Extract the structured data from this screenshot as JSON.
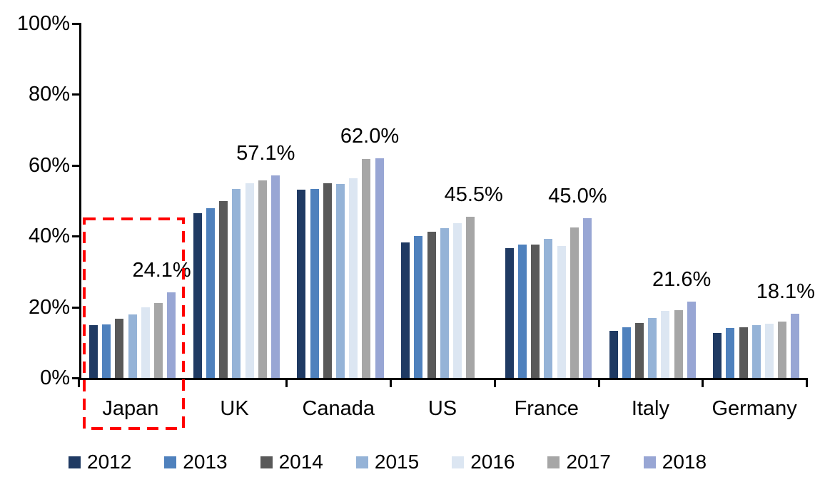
{
  "chart_data": {
    "type": "bar",
    "title": "",
    "xlabel": "",
    "ylabel": "",
    "ylim": [
      0,
      100
    ],
    "grid": false,
    "legend_position": "bottom",
    "categories": [
      "Japan",
      "UK",
      "Canada",
      "US",
      "France",
      "Italy",
      "Germany"
    ],
    "series": [
      {
        "name": "2012",
        "color": "#1F3A63",
        "values": [
          14.8,
          46.4,
          53.1,
          38.2,
          36.6,
          13.3,
          12.6
        ]
      },
      {
        "name": "2013",
        "color": "#4F81BD",
        "values": [
          15.0,
          47.9,
          53.4,
          40.1,
          37.7,
          14.2,
          14.0
        ]
      },
      {
        "name": "2014",
        "color": "#595959",
        "values": [
          16.6,
          50.0,
          54.9,
          41.2,
          37.6,
          15.4,
          14.3
        ]
      },
      {
        "name": "2015",
        "color": "#95B3D7",
        "values": [
          18.0,
          53.3,
          54.7,
          42.3,
          39.2,
          16.9,
          14.8
        ]
      },
      {
        "name": "2016",
        "color": "#DCE6F2",
        "values": [
          20.0,
          55.0,
          56.3,
          43.6,
          37.3,
          18.9,
          15.3
        ]
      },
      {
        "name": "2017",
        "color": "#A6A6A6",
        "values": [
          21.2,
          55.8,
          61.7,
          45.5,
          42.4,
          19.2,
          15.9
        ]
      },
      {
        "name": "2018",
        "color": "#98A6D4",
        "values": [
          24.1,
          57.1,
          62.0,
          null,
          45.0,
          21.6,
          18.1
        ]
      }
    ],
    "data_labels": [
      {
        "category": "Japan",
        "text": "24.1%"
      },
      {
        "category": "UK",
        "text": "57.1%"
      },
      {
        "category": "Canada",
        "text": "62.0%"
      },
      {
        "category": "US",
        "text": "45.5%"
      },
      {
        "category": "France",
        "text": "45.0%"
      },
      {
        "category": "Italy",
        "text": "21.6%"
      },
      {
        "category": "Germany",
        "text": "18.1%"
      }
    ],
    "y_ticks": [
      {
        "value": 0,
        "label": "0%"
      },
      {
        "value": 20,
        "label": "20%"
      },
      {
        "value": 40,
        "label": "40%"
      },
      {
        "value": 60,
        "label": "60%"
      },
      {
        "value": 80,
        "label": "80%"
      },
      {
        "value": 100,
        "label": "100%"
      }
    ],
    "highlight": {
      "category": "Japan",
      "style": "red-dashed-box",
      "color": "#FF0000"
    },
    "axis_color": "#000000",
    "text_color": "#000000"
  }
}
